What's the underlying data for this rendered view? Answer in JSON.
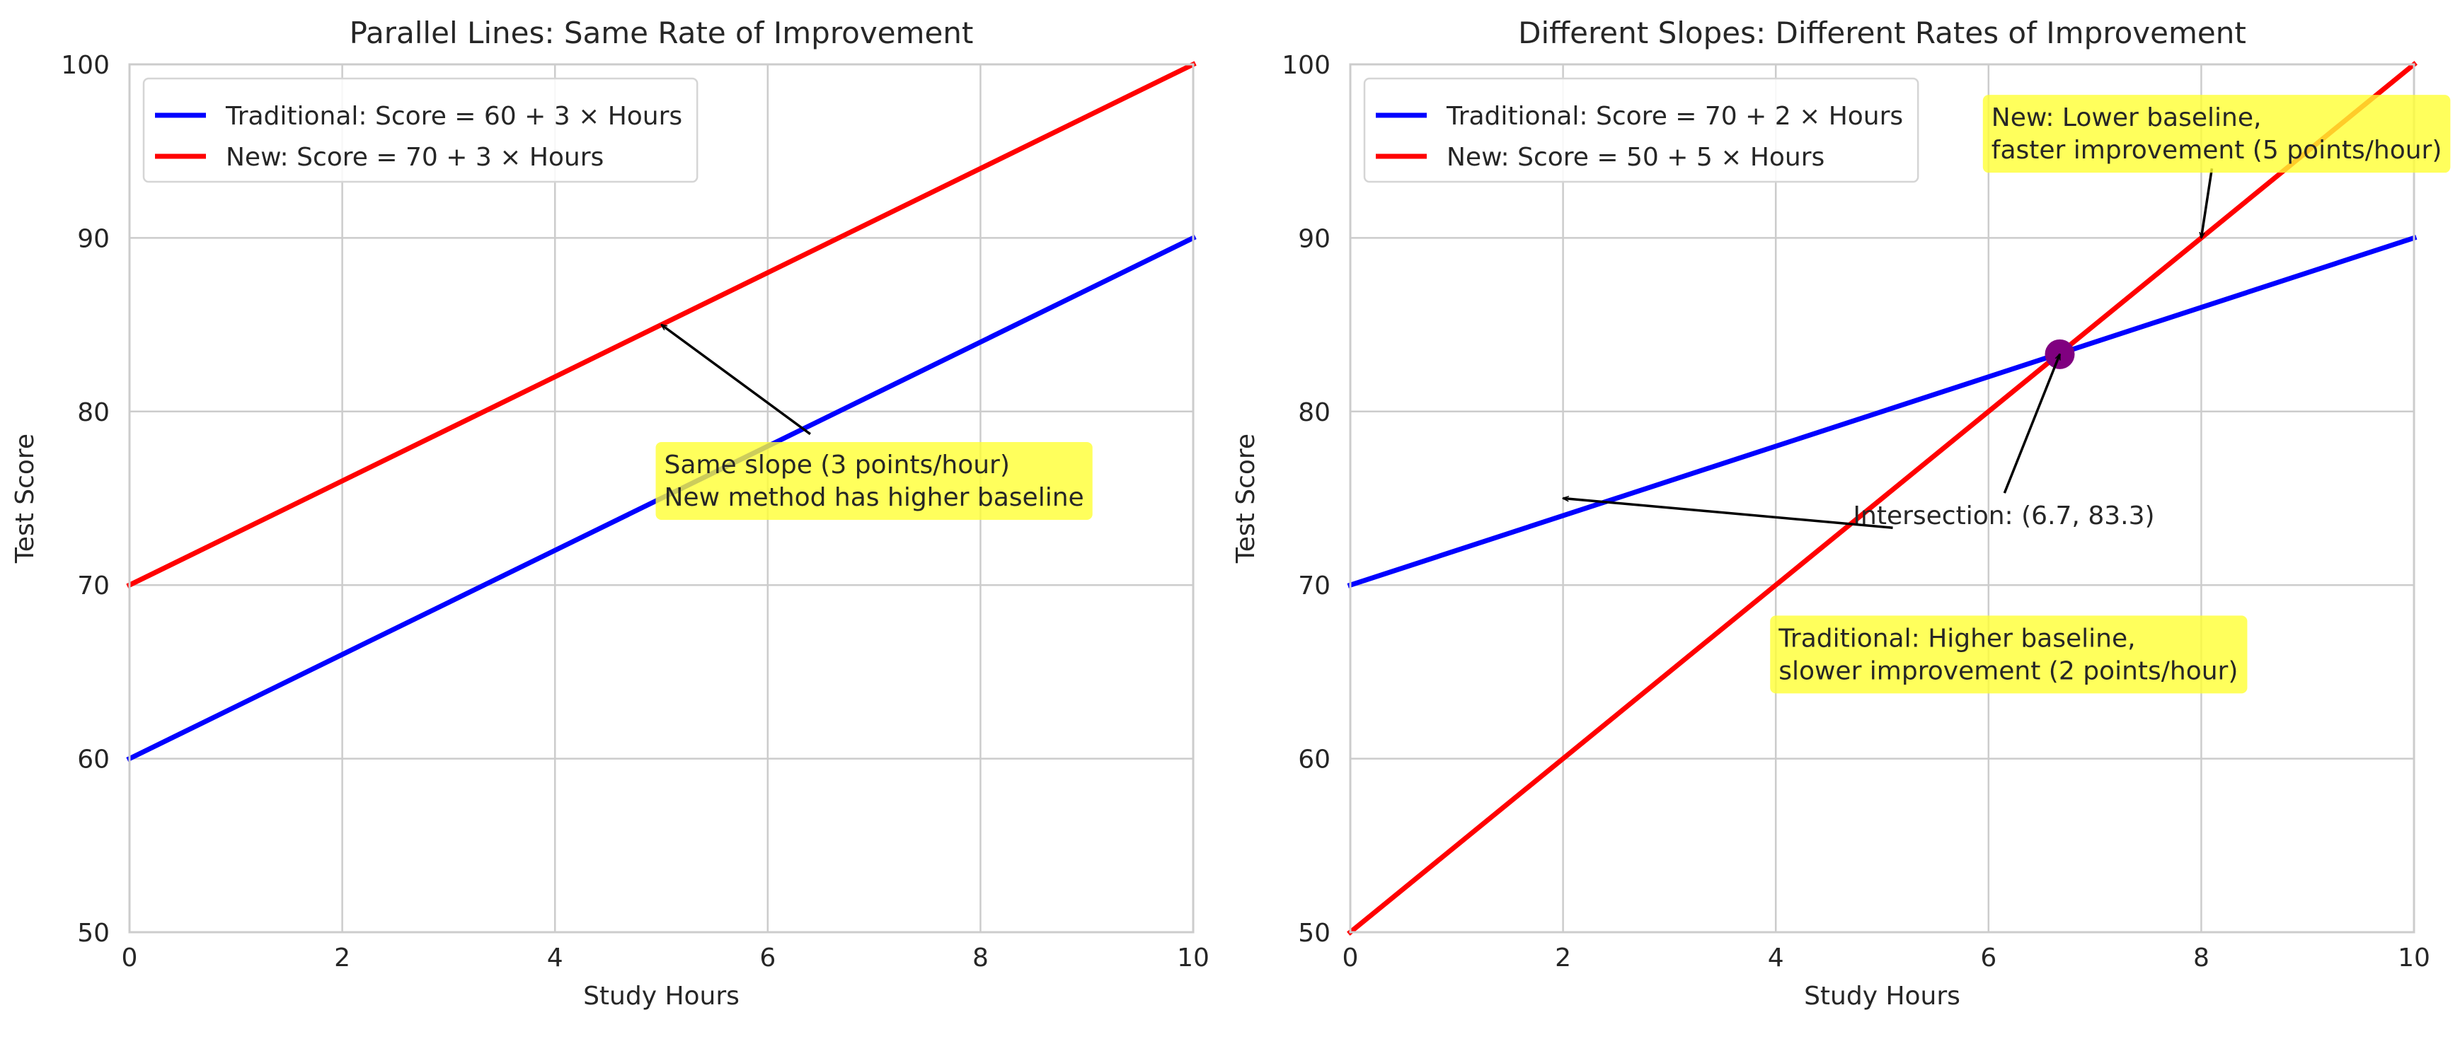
{
  "chart_data": [
    {
      "type": "line",
      "title": "Parallel Lines: Same Rate of Improvement",
      "xlabel": "Study Hours",
      "ylabel": "Test Score",
      "xlim": [
        0,
        10
      ],
      "ylim": [
        50,
        100
      ],
      "xticks": [
        "0",
        "2",
        "4",
        "6",
        "8",
        "10"
      ],
      "yticks": [
        "50",
        "60",
        "70",
        "80",
        "90",
        "100"
      ],
      "grid": true,
      "legend_position": "top-left",
      "series": [
        {
          "name": "Traditional: Score = 60 + 3 × Hours",
          "color": "#0000ff",
          "x": [
            0,
            10
          ],
          "y": [
            60,
            90
          ]
        },
        {
          "name": "New: Score = 70 + 3 × Hours",
          "color": "#ff0000",
          "x": [
            0,
            10
          ],
          "y": [
            70,
            100
          ]
        }
      ],
      "points": [],
      "annotations": [
        {
          "lines": [
            "Same slope (3 points/hour)",
            "New method has higher baseline"
          ],
          "text_at": [
            5,
            76
          ],
          "arrow_to": [
            5,
            85
          ],
          "arrow_from": [
            6.4,
            78.7
          ],
          "box_color": "#ffff33"
        }
      ]
    },
    {
      "type": "line",
      "title": "Different Slopes: Different Rates of Improvement",
      "xlabel": "Study Hours",
      "ylabel": "Test Score",
      "xlim": [
        0,
        10
      ],
      "ylim": [
        50,
        100
      ],
      "xticks": [
        "0",
        "2",
        "4",
        "6",
        "8",
        "10"
      ],
      "yticks": [
        "50",
        "60",
        "70",
        "80",
        "90",
        "100"
      ],
      "grid": true,
      "legend_position": "top-left",
      "series": [
        {
          "name": "Traditional: Score = 70 + 2 × Hours",
          "color": "#0000ff",
          "x": [
            0,
            10
          ],
          "y": [
            70,
            90
          ]
        },
        {
          "name": "New: Score = 50 + 5 × Hours",
          "color": "#ff0000",
          "x": [
            0,
            10
          ],
          "y": [
            50,
            100
          ]
        }
      ],
      "points": [
        {
          "x": 6.67,
          "y": 83.3,
          "color": "#800080"
        }
      ],
      "annotations": [
        {
          "lines": [
            "New: Lower baseline,",
            "faster improvement (5 points/hour)"
          ],
          "text_at": [
            6,
            96
          ],
          "arrow_to": [
            8,
            90
          ],
          "arrow_from": [
            8.1,
            94
          ],
          "box_color": "#ffff33"
        },
        {
          "lines": [
            "Intersection: (6.7, 83.3)"
          ],
          "text_at": [
            4.7,
            74
          ],
          "arrow_to": [
            6.67,
            83.3
          ],
          "arrow_from": [
            6.15,
            75.3
          ],
          "box_color": null
        },
        {
          "lines": [
            "Traditional: Higher baseline,",
            "slower improvement (2 points/hour)"
          ],
          "text_at": [
            4,
            66
          ],
          "arrow_to": [
            2,
            75
          ],
          "arrow_from": [
            5.1,
            73.3
          ],
          "box_color": "#ffff33"
        }
      ]
    }
  ]
}
